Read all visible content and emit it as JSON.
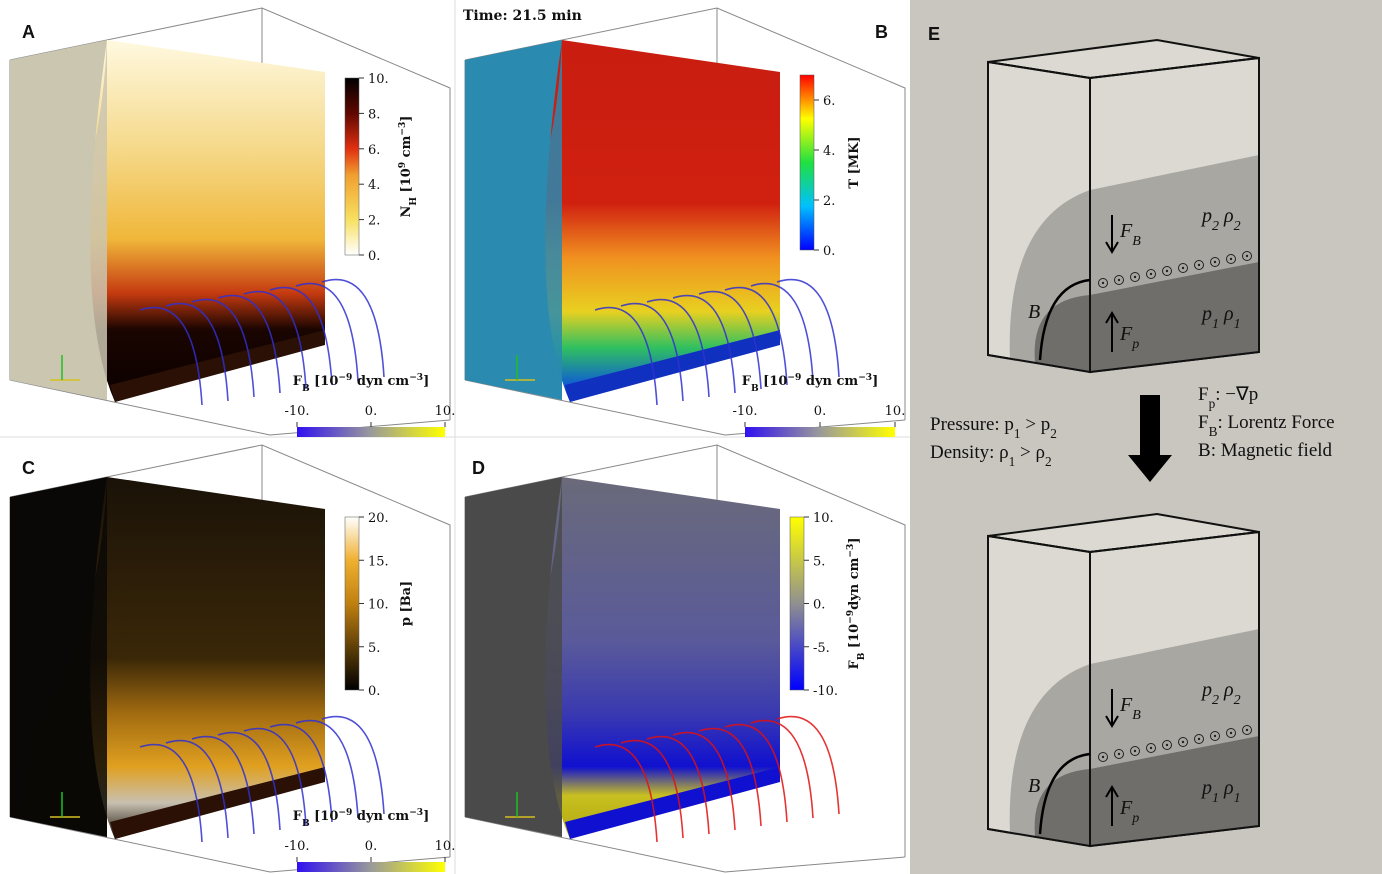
{
  "time": "Time: 21.5 min",
  "panels": [
    {
      "letter": "A",
      "colorbar": {
        "label": [
          "N",
          {
            "sub": "H"
          },
          " [10",
          {
            "sup": "9"
          },
          " cm",
          {
            "sup": "−3"
          },
          "]"
        ],
        "lim": [
          0,
          10
        ],
        "ticks": [
          {
            "value": 0,
            "label": "0."
          },
          {
            "value": 2,
            "label": "2."
          },
          {
            "value": 4,
            "label": "4."
          },
          {
            "value": 6,
            "label": "6."
          },
          {
            "value": 8,
            "label": "8."
          },
          {
            "value": 10,
            "label": "10."
          }
        ]
      },
      "fb_bar": {
        "label": [
          "F",
          {
            "sub": "B"
          },
          " [10",
          {
            "sup": "−9"
          },
          " dyn cm",
          {
            "sup": "−3"
          },
          "]"
        ],
        "lim": [
          -10,
          10
        ],
        "ticks": [
          {
            "value": -10,
            "label": "-10."
          },
          {
            "value": 0,
            "label": "0."
          },
          {
            "value": 10,
            "label": "10."
          }
        ]
      }
    },
    {
      "letter": "B",
      "colorbar": {
        "label": [
          "T [MK]"
        ],
        "lim": [
          0,
          7
        ],
        "ticks": [
          {
            "value": 0,
            "label": "0."
          },
          {
            "value": 2,
            "label": "2."
          },
          {
            "value": 4,
            "label": "4."
          },
          {
            "value": 6,
            "label": "6."
          }
        ]
      },
      "fb_bar": {
        "label": [
          "F",
          {
            "sub": "B"
          },
          " [10",
          {
            "sup": "−9"
          },
          " dyn cm",
          {
            "sup": "−3"
          },
          "]"
        ],
        "lim": [
          -10,
          10
        ],
        "ticks": [
          {
            "value": -10,
            "label": "-10."
          },
          {
            "value": 0,
            "label": "0."
          },
          {
            "value": 10,
            "label": "10."
          }
        ]
      }
    },
    {
      "letter": "C",
      "colorbar": {
        "label": [
          "p [Ba]"
        ],
        "lim": [
          0,
          20
        ],
        "ticks": [
          {
            "value": 0,
            "label": "0."
          },
          {
            "value": 5,
            "label": "5."
          },
          {
            "value": 10,
            "label": "10."
          },
          {
            "value": 15,
            "label": "15."
          },
          {
            "value": 20,
            "label": "20."
          }
        ]
      },
      "fb_bar": {
        "label": [
          "F",
          {
            "sub": "B"
          },
          " [10",
          {
            "sup": "−9"
          },
          " dyn cm",
          {
            "sup": "−3"
          },
          "]"
        ],
        "lim": [
          -10,
          10
        ],
        "ticks": [
          {
            "value": -10,
            "label": "-10."
          },
          {
            "value": 0,
            "label": "0."
          },
          {
            "value": 10,
            "label": "10."
          }
        ]
      }
    },
    {
      "letter": "D",
      "colorbar": {
        "label": [
          "F",
          {
            "sub": "B"
          },
          " [10",
          {
            "sup": "−9"
          },
          "dyn cm",
          {
            "sup": "−3"
          },
          "]"
        ],
        "lim": [
          -10,
          10
        ],
        "ticks": [
          {
            "value": -10,
            "label": "-10."
          },
          {
            "value": -5,
            "label": "-5."
          },
          {
            "value": 0,
            "label": "0."
          },
          {
            "value": 5,
            "label": "5."
          },
          {
            "value": 10,
            "label": "10."
          }
        ]
      }
    }
  ],
  "schematic": {
    "letter": "E",
    "boxes": [
      {
        "fb": [
          "F",
          {
            "sub": "B"
          }
        ],
        "upper": [
          "p",
          {
            "sub": "2"
          },
          "  ρ",
          {
            "sub": "2"
          }
        ],
        "b": [
          "B"
        ],
        "fp": [
          "F",
          {
            "sub": "p"
          }
        ],
        "lower": [
          "p",
          {
            "sub": "1"
          },
          "  ρ",
          {
            "sub": "1"
          }
        ]
      },
      {
        "fb": [
          "F",
          {
            "sub": "B"
          }
        ],
        "upper": [
          "p",
          {
            "sub": "2"
          },
          "  ρ",
          {
            "sub": "2"
          }
        ],
        "b": [
          "B"
        ],
        "fp": [
          "F",
          {
            "sub": "p"
          }
        ],
        "lower": [
          "p",
          {
            "sub": "1"
          },
          "  ρ",
          {
            "sub": "1"
          }
        ]
      }
    ],
    "pressure": [
      "Pressure: ",
      "p",
      {
        "sub": "1"
      },
      " > ",
      "p",
      {
        "sub": "2"
      }
    ],
    "density": [
      "Density: ",
      "ρ",
      {
        "sub": "1"
      },
      " > ",
      "ρ",
      {
        "sub": "2"
      }
    ],
    "legend": [
      [
        "F",
        {
          "sub": "p"
        },
        ": −∇p"
      ],
      [
        "F",
        {
          "sub": "B"
        },
        ": Lorentz Force"
      ],
      [
        "B",
        ": Magnetic field"
      ]
    ]
  }
}
